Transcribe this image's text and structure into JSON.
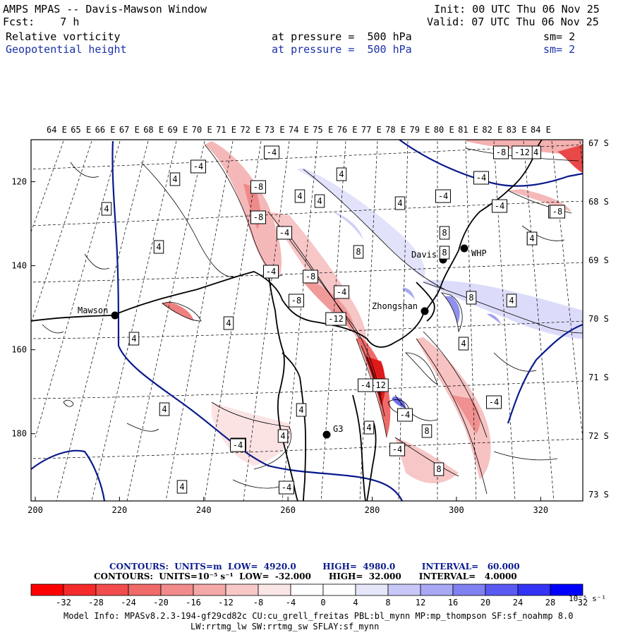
{
  "header": {
    "title": "AMPS MPAS -- Davis-Mawson Window",
    "forecast": "Fcst:    7 h",
    "init": "Init: 00 UTC Thu 06 Nov 25",
    "valid": "Valid: 07 UTC Thu 06 Nov 25",
    "field1": {
      "name": "Relative vorticity",
      "level": "at pressure =  500 hPa",
      "smooth": "sm= 2"
    },
    "field2": {
      "name": "Geopotential height",
      "level": "at pressure =  500 hPa",
      "smooth": "sm= 2"
    }
  },
  "map": {
    "lon_labels": [
      "64 E",
      "65 E",
      "66 E",
      "67 E",
      "68 E",
      "69 E",
      "70 E",
      "71 E",
      "72 E",
      "73 E",
      "74 E",
      "75 E",
      "76 E",
      "77 E",
      "78 E",
      "79 E",
      "80 E",
      "81 E",
      "82 E",
      "83 E",
      "84 E"
    ],
    "lat_labels": [
      "67 S",
      "68 S",
      "69 S",
      "70 S",
      "71 S",
      "72 S",
      "73 S"
    ],
    "x_ticks": [
      "200",
      "220",
      "240",
      "260",
      "280",
      "300",
      "320"
    ],
    "y_ticks": [
      "120",
      "140",
      "160",
      "180"
    ],
    "stations": [
      {
        "name": "Mawson"
      },
      {
        "name": "Davis"
      },
      {
        "name": "WHP"
      },
      {
        "name": "Zhongshan"
      },
      {
        "name": "G3"
      }
    ],
    "contour_labels": [
      "4",
      "-4",
      "4",
      "4",
      "-8",
      "4",
      "-8",
      "4",
      "4",
      "-4",
      "8",
      "4",
      "-4",
      "-8",
      "8",
      "-4",
      "4",
      "-8",
      "4",
      "-4",
      "-4",
      "-12",
      "8",
      "4",
      "-4",
      "-4",
      "-4",
      "8",
      "8",
      "4",
      "8",
      "-12",
      "4",
      "-4",
      "-4",
      "4",
      "4",
      "4",
      "-4",
      "4",
      "-8",
      "-4",
      "-4",
      "4",
      "-4",
      "-8",
      "-4",
      "-8",
      "-8",
      "4",
      "-12"
    ],
    "colors": {
      "height_contour": "#0a1a8c",
      "coast": "#000000"
    }
  },
  "contour_info": {
    "line1": "CONTOURS:  UNITS=m  LOW=  4920.0         HIGH=  4980.0         INTERVAL=   60.000",
    "line2": "CONTOURS:  UNITS=10⁻⁵ s⁻¹  LOW=  -32.000      HIGH=  32.000      INTERVAL=   4.0000"
  },
  "colorbar": {
    "labels": [
      "-32",
      "-28",
      "-24",
      "-20",
      "-16",
      "-12",
      "-8",
      "-4",
      "0",
      "4",
      "8",
      "12",
      "16",
      "20",
      "24",
      "28",
      "32"
    ],
    "units": "10⁻⁵ s⁻¹",
    "colors": [
      "#ff0000",
      "#f52b2b",
      "#f24c4c",
      "#f06a6a",
      "#f28b8b",
      "#f5a8a8",
      "#f8c8c8",
      "#fbe6e6",
      "#ffffff",
      "#ffffff",
      "#e6e6fb",
      "#c8c8f8",
      "#a8a8f5",
      "#8080f0",
      "#5a5af2",
      "#3333f5",
      "#0000ff"
    ]
  },
  "model_info": {
    "line1": "Model Info: MPASv8.2.3-194-gf29cd82c CU:cu_grell_freitas PBL:bl_mynn MP:mp_thompson SF:sf_noahmp 8.0",
    "line2": "LW:rrtmg_lw SW:rrtmg_sw SFLAY:sf_mynn"
  }
}
